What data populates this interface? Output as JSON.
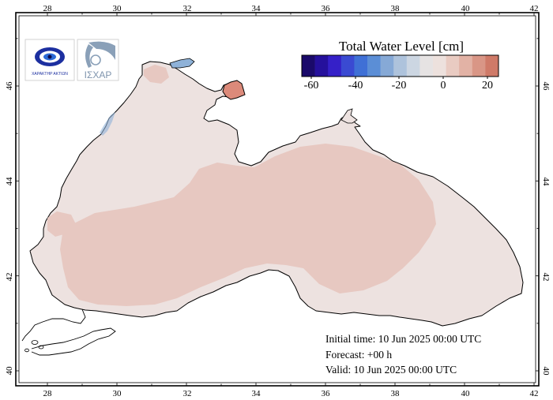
{
  "map": {
    "lon_ticks": [
      "28",
      "30",
      "32",
      "34",
      "36",
      "38",
      "40",
      "42"
    ],
    "lat_ticks": [
      "40",
      "42",
      "44",
      "46"
    ],
    "water_color": "#ede2e0",
    "anomaly_color": "#e7c8c1",
    "positive_color": "#dc8a7a",
    "negative_color": "#8fb2d8",
    "coast_color": "#000000"
  },
  "colorbar": {
    "title": "Total Water Level [cm]",
    "tick_labels": [
      "-60",
      "-40",
      "-20",
      "0",
      "20"
    ],
    "colors": [
      "#1a0a6a",
      "#25109c",
      "#3520c8",
      "#3a4ad2",
      "#3f70d6",
      "#5b8ed6",
      "#86a9d6",
      "#aec3dc",
      "#ccd6e2",
      "#e6e3e3",
      "#ede1dd",
      "#e9cbc2",
      "#e2b2a5",
      "#d99686",
      "#cf7a68"
    ]
  },
  "info": {
    "initial_time": "Initial time: 10 Jun 2025 00:00 UTC",
    "forecast": "Forecast: +00 h",
    "valid": "Valid: 10 Jun 2025 00:00 UTC"
  },
  "logos": {
    "left_logo_text": "ΧΑΡΑΚΤΗΡ ΑΚΤΙΩΝ",
    "right_logo_text": "ΙΣΧΑΡ"
  }
}
